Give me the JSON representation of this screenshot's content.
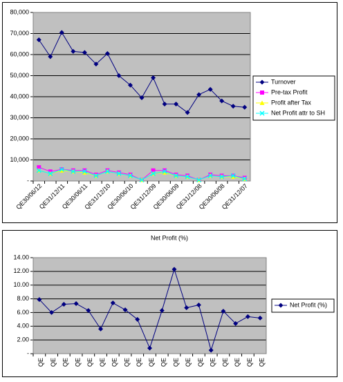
{
  "chart_data": [
    {
      "type": "line",
      "ylim": [
        0,
        80000
      ],
      "yticks": [
        {
          "value": 0,
          "label": "-"
        },
        {
          "value": 10000,
          "label": "10,000"
        },
        {
          "value": 20000,
          "label": "20,000"
        },
        {
          "value": 30000,
          "label": "30,000"
        },
        {
          "value": 40000,
          "label": "40,000"
        },
        {
          "value": 50000,
          "label": "50,000"
        },
        {
          "value": 60000,
          "label": "60,000"
        },
        {
          "value": 70000,
          "label": "70,000"
        },
        {
          "value": 80000,
          "label": "80,000"
        }
      ],
      "grid": true,
      "legend": "right",
      "categories": [
        "QE30/06/12",
        null,
        "QE31/12/11",
        null,
        "QE30/06/11",
        null,
        "QE31/12/10",
        null,
        "QE30/06/10",
        null,
        "QE31/12/09",
        null,
        "QE30/06/09",
        null,
        "QE31/12/08",
        null,
        "QE30/06/08",
        null,
        "QE31/12/07"
      ],
      "series": [
        {
          "name": "Turnover",
          "color": "#000080",
          "marker": "diamond",
          "values": [
            67000,
            59000,
            70500,
            61500,
            61000,
            55500,
            60500,
            50000,
            45500,
            39500,
            49000,
            36500,
            36500,
            32500,
            41000,
            43500,
            38000,
            35500,
            35000
          ]
        },
        {
          "name": "Pre-tax Profit",
          "color": "#ff00ff",
          "marker": "square",
          "values": [
            6500,
            4500,
            5500,
            5000,
            5000,
            3000,
            5000,
            4000,
            3000,
            500,
            5000,
            5000,
            3000,
            2500,
            500,
            3000,
            2500,
            2500,
            1500
          ]
        },
        {
          "name": "Profit after Tax",
          "color": "#ffff00",
          "marker": "triangle",
          "values": [
            5000,
            3500,
            5000,
            4500,
            4000,
            2500,
            4500,
            3500,
            2500,
            500,
            3500,
            4000,
            2500,
            2000,
            500,
            2500,
            2000,
            2000,
            1000
          ]
        },
        {
          "name": "Net Profit attr to SH",
          "color": "#00ffff",
          "marker": "x",
          "values": [
            5000,
            3500,
            5500,
            4500,
            4500,
            2500,
            4500,
            3500,
            2500,
            500,
            3500,
            4500,
            2500,
            2000,
            500,
            2500,
            2000,
            2500,
            1000
          ]
        }
      ]
    },
    {
      "type": "line",
      "title": "Net Profit (%)",
      "ylim": [
        0,
        14
      ],
      "yticks": [
        {
          "value": 0,
          "label": "-"
        },
        {
          "value": 2,
          "label": "2.00"
        },
        {
          "value": 4,
          "label": "4.00"
        },
        {
          "value": 6,
          "label": "6.00"
        },
        {
          "value": 8,
          "label": "8.00"
        },
        {
          "value": 10,
          "label": "10.00"
        },
        {
          "value": 12,
          "label": "12.00"
        },
        {
          "value": 14,
          "label": "14.00"
        }
      ],
      "grid": true,
      "legend": "right",
      "categories": [
        "QE",
        "QE",
        "QE",
        "QE",
        "QE",
        "QE",
        "QE",
        "QE",
        "QE",
        "QE",
        "QE",
        "QE",
        "QE",
        "QE",
        "QE",
        "QE",
        "QE",
        "QE",
        "QE"
      ],
      "series": [
        {
          "name": "Net Profit (%)",
          "color": "#000080",
          "marker": "diamond",
          "values": [
            7.9,
            6.0,
            7.2,
            7.3,
            6.3,
            3.6,
            7.4,
            6.4,
            5.0,
            0.8,
            6.3,
            12.3,
            6.7,
            7.1,
            0.5,
            6.2,
            4.4,
            5.4,
            5.2
          ]
        }
      ]
    }
  ]
}
